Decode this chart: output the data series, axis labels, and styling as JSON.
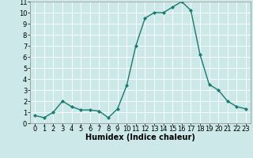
{
  "x": [
    0,
    1,
    2,
    3,
    4,
    5,
    6,
    7,
    8,
    9,
    10,
    11,
    12,
    13,
    14,
    15,
    16,
    17,
    18,
    19,
    20,
    21,
    22,
    23
  ],
  "y": [
    0.7,
    0.5,
    1.0,
    2.0,
    1.5,
    1.2,
    1.2,
    1.1,
    0.5,
    1.3,
    3.4,
    7.0,
    9.5,
    10.0,
    10.0,
    10.5,
    11.0,
    10.2,
    6.2,
    3.5,
    3.0,
    2.0,
    1.5,
    1.3
  ],
  "line_color": "#1a7a6e",
  "marker": "D",
  "marker_size": 2,
  "bg_color": "#cce8e8",
  "grid_color": "#ffffff",
  "xlabel": "Humidex (Indice chaleur)",
  "xlim": [
    -0.5,
    23.5
  ],
  "ylim": [
    0,
    11
  ],
  "yticks": [
    0,
    1,
    2,
    3,
    4,
    5,
    6,
    7,
    8,
    9,
    10,
    11
  ],
  "xticks": [
    0,
    1,
    2,
    3,
    4,
    5,
    6,
    7,
    8,
    9,
    10,
    11,
    12,
    13,
    14,
    15,
    16,
    17,
    18,
    19,
    20,
    21,
    22,
    23
  ],
  "xlabel_fontsize": 7,
  "tick_fontsize": 6,
  "linewidth": 1.0
}
